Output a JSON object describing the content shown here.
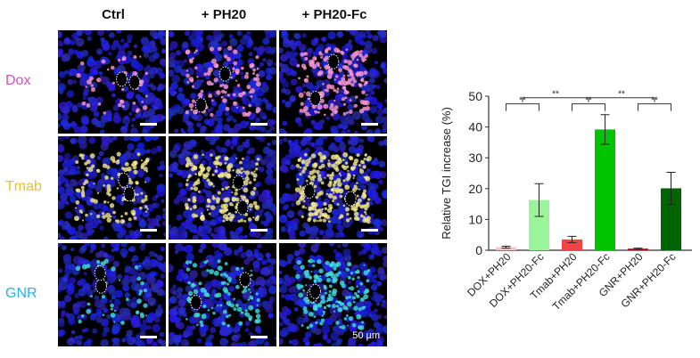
{
  "columns": [
    "Ctrl",
    "+ PH20",
    "+ PH20-Fc"
  ],
  "rows": [
    {
      "label": "Dox",
      "color": "#d94fc4",
      "signal": "#ff9ad0"
    },
    {
      "label": "Tmab",
      "color": "#e8c22a",
      "signal": "#f2e890"
    },
    {
      "label": "GNR",
      "color": "#2ab0e8",
      "signal": "#40e0e0"
    }
  ],
  "scale_bar": "50 µm",
  "chart_data": {
    "type": "bar",
    "categories": [
      "DOX+PH20",
      "DOX+PH20-Fc",
      "Tmab+PH20",
      "Tmab+PH20-Fc",
      "GNR+PH20",
      "GNR+PH20-Fc"
    ],
    "values": [
      1.0,
      16.3,
      3.5,
      39.2,
      0.5,
      20.1
    ],
    "errors": [
      0.3,
      5.3,
      1.0,
      4.8,
      0.2,
      5.2
    ],
    "colors": [
      "#f5c4c4",
      "#9af59a",
      "#f04545",
      "#00c400",
      "#b00000",
      "#006400"
    ],
    "ylabel": "Relative TGI increase (%)",
    "ylim": [
      0,
      50
    ],
    "yticks": [
      0,
      10,
      20,
      30,
      40,
      50
    ],
    "significance": [
      {
        "from": 0,
        "to": 1,
        "label": "**"
      },
      {
        "from": 2,
        "to": 3,
        "label": "**"
      },
      {
        "from": 4,
        "to": 5,
        "label": "**"
      },
      {
        "from": "0-1",
        "to": "2-3",
        "label": "**"
      },
      {
        "from": "2-3",
        "to": "4-5",
        "label": "**"
      }
    ]
  }
}
